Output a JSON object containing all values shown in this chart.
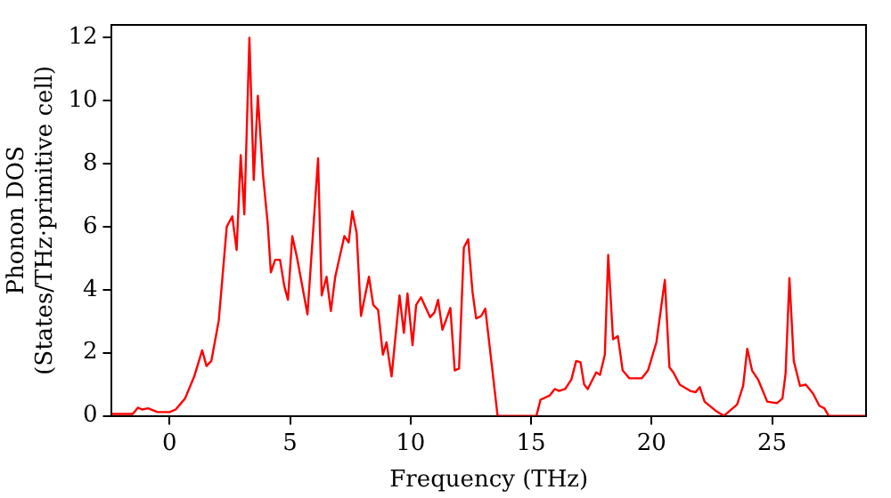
{
  "chart_data": {
    "type": "line",
    "xlabel": "Frequency (THz)",
    "ylabel": "Phonon DOS\n(States/THz·primitive cell)",
    "x": [
      -2.4,
      -1.53,
      -1.32,
      -1.14,
      -0.89,
      -0.51,
      0,
      0.25,
      0.64,
      1.02,
      1.35,
      1.53,
      1.73,
      2.04,
      2.37,
      2.6,
      2.78,
      2.95,
      3.1,
      3.31,
      3.49,
      3.66,
      3.87,
      4.07,
      4.2,
      4.38,
      4.58,
      4.76,
      4.91,
      5.09,
      5.29,
      5.72,
      6.16,
      6.31,
      6.51,
      6.69,
      6.87,
      7.25,
      7.43,
      7.58,
      7.76,
      7.94,
      8.27,
      8.45,
      8.65,
      8.85,
      9.0,
      9.21,
      9.54,
      9.72,
      9.87,
      10.08,
      10.23,
      10.43,
      10.81,
      10.99,
      11.14,
      11.32,
      11.65,
      11.83,
      12.01,
      12.21,
      12.39,
      12.57,
      12.72,
      12.93,
      13.1,
      13.61,
      15.22,
      15.39,
      15.78,
      15.98,
      16.16,
      16.41,
      16.67,
      16.87,
      17.05,
      17.2,
      17.35,
      17.7,
      17.86,
      18.06,
      18.2,
      18.4,
      18.6,
      18.8,
      19.08,
      19.59,
      19.85,
      20.2,
      20.55,
      20.74,
      20.9,
      21.17,
      21.6,
      21.83,
      22.0,
      22.2,
      22.66,
      23.0,
      23.55,
      23.8,
      23.97,
      24.17,
      24.42,
      24.8,
      25.2,
      25.43,
      25.56,
      25.72,
      25.9,
      26.16,
      26.4,
      26.7,
      26.96,
      27.17,
      27.35,
      28.9
    ],
    "series": [
      {
        "color": "#ff0000",
        "values": [
          0.06,
          0.06,
          0.26,
          0.2,
          0.24,
          0.12,
          0.12,
          0.2,
          0.55,
          1.25,
          2.08,
          1.58,
          1.74,
          3.03,
          6.0,
          6.33,
          5.26,
          8.27,
          6.39,
          11.99,
          7.48,
          10.15,
          7.68,
          6.09,
          4.55,
          4.95,
          4.95,
          4.11,
          3.68,
          5.7,
          5.0,
          3.22,
          8.17,
          3.82,
          4.41,
          3.32,
          4.4,
          5.7,
          5.5,
          6.49,
          5.8,
          3.17,
          4.41,
          3.52,
          3.36,
          1.94,
          2.33,
          1.25,
          3.82,
          2.63,
          3.88,
          2.24,
          3.52,
          3.76,
          3.13,
          3.28,
          3.68,
          2.73,
          3.42,
          1.44,
          1.5,
          5.34,
          5.6,
          3.92,
          3.09,
          3.17,
          3.4,
          0,
          0,
          0.51,
          0.65,
          0.85,
          0.79,
          0.85,
          1.15,
          1.74,
          1.7,
          1.0,
          0.85,
          1.38,
          1.3,
          1.94,
          5.1,
          2.43,
          2.53,
          1.44,
          1.19,
          1.19,
          1.44,
          2.33,
          4.31,
          1.54,
          1.38,
          0.99,
          0.79,
          0.75,
          0.91,
          0.45,
          0.16,
          0,
          0.36,
          0.95,
          2.13,
          1.44,
          1.15,
          0.45,
          0.4,
          0.55,
          1.34,
          4.37,
          1.74,
          0.95,
          0.99,
          0.71,
          0.32,
          0.24,
          0,
          0
        ]
      }
    ],
    "xlim": [
      -2.4,
      28.9
    ],
    "ylim": [
      0,
      12.4
    ],
    "xticks": [
      0,
      5,
      10,
      15,
      20,
      25
    ],
    "yticks": [
      0,
      2,
      4,
      6,
      8,
      10,
      12
    ],
    "grid": false,
    "legend": false,
    "marker": "none",
    "line_style": "solid"
  }
}
